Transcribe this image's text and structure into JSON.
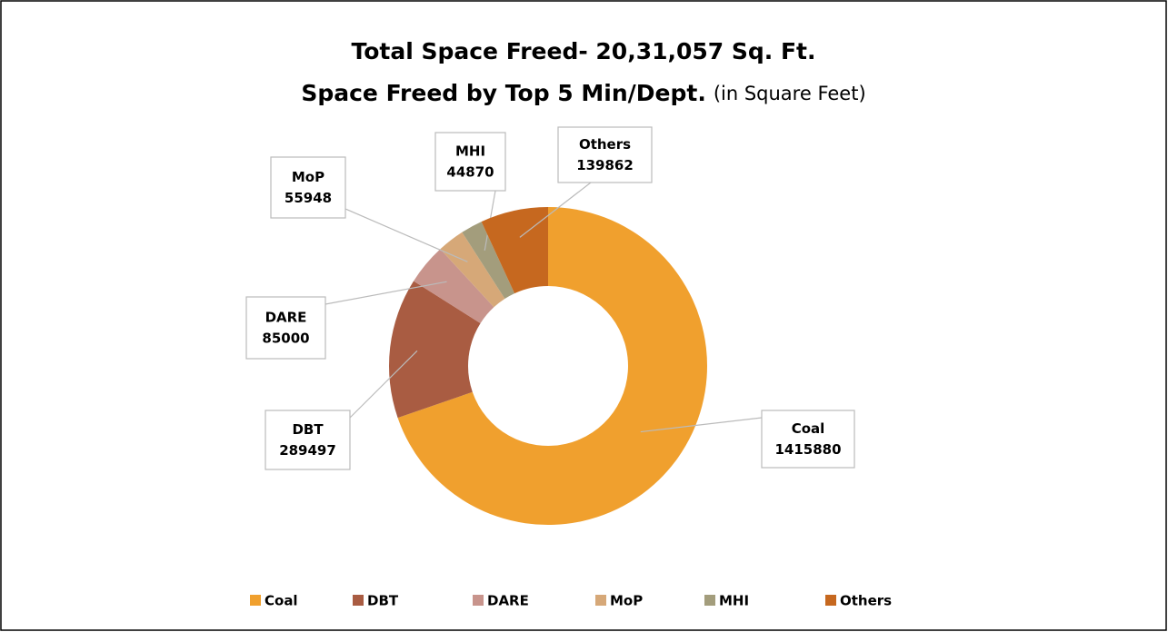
{
  "chart_data": {
    "type": "donut",
    "title": "Total Space Freed- 20,31,057 Sq. Ft.",
    "subtitle": "Space Freed by Top 5 Min/Dept.",
    "subtitle_note": "(in Square Feet)",
    "categories": [
      "Coal",
      "DBT",
      "DARE",
      "MoP",
      "MHI",
      "Others"
    ],
    "values": [
      1415880,
      289497,
      85000,
      55948,
      44870,
      139862
    ],
    "colors": [
      "#f0a02e",
      "#a95c42",
      "#c8948c",
      "#d6a878",
      "#a39d7c",
      "#c6681f"
    ],
    "legend": "bottom"
  }
}
